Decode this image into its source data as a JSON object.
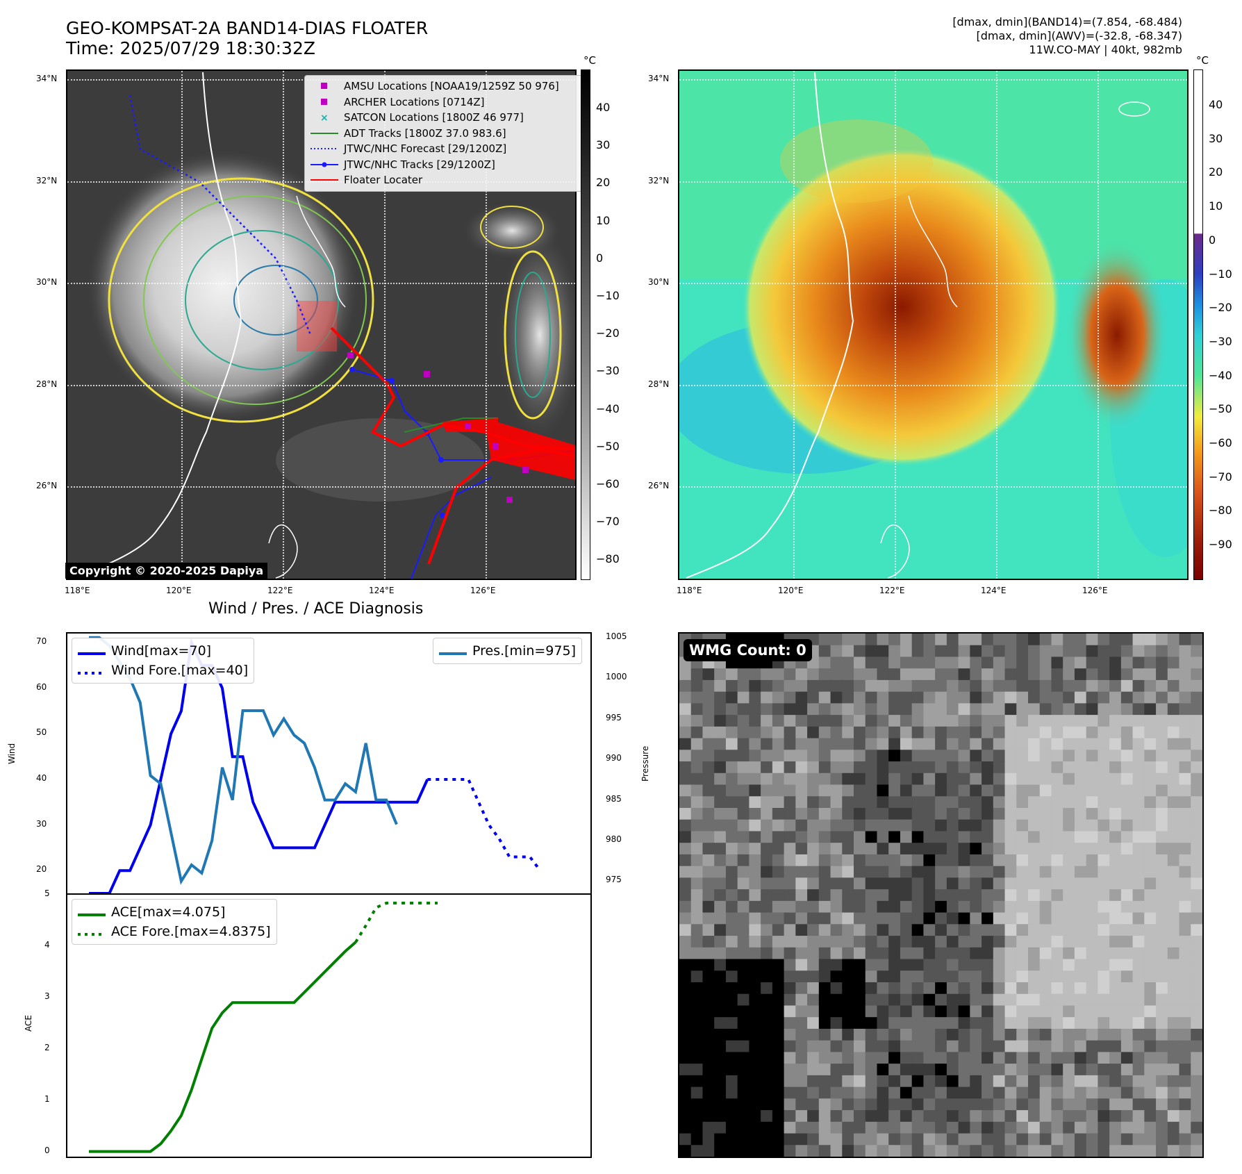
{
  "header": {
    "title_line1": "GEO-KOMPSAT-2A BAND14-DIAS FLOATER",
    "title_line2": "Time: 2025/07/29 18:30:32Z",
    "info_line1": "[dmax, dmin](BAND14)=(7.854, -68.484)",
    "info_line2": "[dmax, dmin](AWV)=(-32.8, -68.347)",
    "info_line3": "11W.CO-MAY | 40kt, 982mb"
  },
  "map": {
    "lat_labels": [
      "34°N",
      "32°N",
      "30°N",
      "28°N",
      "26°N"
    ],
    "lon_labels": [
      "118°E",
      "120°E",
      "122°E",
      "124°E",
      "126°E"
    ],
    "copyright": "Copyright © 2020-2025 Dapiya",
    "legend": [
      {
        "label": "AMSU Locations [NOAA19/1259Z 50 976]",
        "symbol": "square",
        "color": "#c000c0"
      },
      {
        "label": "ARCHER Locations [0714Z]",
        "symbol": "square",
        "color": "#c000c0"
      },
      {
        "label": "SATCON Locations [1800Z 46 977]",
        "symbol": "x",
        "color": "#18b0b0"
      },
      {
        "label": "ADT Tracks [1800Z 37.0 983.6]",
        "symbol": "line",
        "color": "#2a8a2a"
      },
      {
        "label": "JTWC/NHC Forecast [29/1200Z]",
        "symbol": "dotted",
        "color": "#1a1aff"
      },
      {
        "label": "JTWC/NHC Tracks [29/1200Z]",
        "symbol": "line-dot",
        "color": "#1a1aff"
      },
      {
        "label": "Floater Locater",
        "symbol": "line",
        "color": "#ff0000"
      }
    ]
  },
  "colorbar1": {
    "unit": "°C",
    "ticks": [
      "40",
      "30",
      "20",
      "10",
      "0",
      "−10",
      "−20",
      "−30",
      "−40",
      "−50",
      "−60",
      "−70",
      "−80"
    ]
  },
  "colorbar2": {
    "unit": "°C",
    "ticks": [
      "40",
      "30",
      "20",
      "10",
      "0",
      "−10",
      "−20",
      "−30",
      "−40",
      "−50",
      "−60",
      "−70",
      "−80",
      "−90"
    ]
  },
  "diagnosis_title": "Wind / Pres. / ACE Diagnosis",
  "wmg_count": "WMG Count: 0",
  "chart_data": [
    {
      "type": "line",
      "title": "Wind / Pres. / ACE Diagnosis",
      "ylabel": "Wind",
      "ylabel_right": "Pressure",
      "ylim": [
        15,
        72
      ],
      "ylim_right": [
        973.5,
        1005.5
      ],
      "yticks": [
        "70",
        "60",
        "50",
        "40",
        "30",
        "20"
      ],
      "yticks_right": [
        "1005",
        "1000",
        "995",
        "990",
        "985",
        "980",
        "975"
      ],
      "x": [
        0,
        1,
        2,
        3,
        4,
        5,
        6,
        7,
        8,
        9,
        10,
        11,
        12,
        13,
        14,
        15,
        16,
        17,
        18,
        19,
        20,
        21,
        22,
        23,
        24,
        25,
        26,
        27,
        28,
        29,
        30,
        31,
        32,
        33,
        34,
        35,
        36,
        37,
        38,
        39,
        40,
        41,
        42,
        43,
        44,
        45,
        46,
        47
      ],
      "series": [
        {
          "name": "Wind[max=70]",
          "axis": "left",
          "style": "solid",
          "color": "#0000ee",
          "values": [
            15,
            15,
            15,
            20,
            20,
            25,
            30,
            40,
            50,
            55,
            70,
            65,
            65,
            60,
            45,
            45,
            35,
            30,
            25,
            25,
            25,
            25,
            25,
            30,
            35,
            35,
            35,
            35,
            35,
            35,
            35,
            35,
            35,
            40,
            null,
            null,
            null,
            null,
            null,
            null,
            null,
            null,
            null,
            null,
            null,
            null,
            null,
            null
          ]
        },
        {
          "name": "Wind Fore.[max=40]",
          "axis": "left",
          "style": "dotted",
          "color": "#0000ee",
          "values": [
            null,
            null,
            null,
            null,
            null,
            null,
            null,
            null,
            null,
            null,
            null,
            null,
            null,
            null,
            null,
            null,
            null,
            null,
            null,
            null,
            null,
            null,
            null,
            null,
            null,
            null,
            null,
            null,
            null,
            null,
            null,
            null,
            null,
            40,
            40,
            40,
            40,
            40,
            35,
            30,
            27,
            23,
            23,
            23,
            20,
            null,
            null,
            null
          ]
        },
        {
          "name": "Pres.[min=975]",
          "axis": "right",
          "style": "solid",
          "color": "#1f77b4",
          "values": [
            1005,
            1005,
            1004,
            1002,
            1000,
            997,
            988,
            987,
            981,
            975,
            977,
            976,
            980,
            989,
            985,
            996,
            996,
            996,
            993,
            995,
            993,
            992,
            989,
            985,
            985,
            987,
            986,
            992,
            985,
            985,
            982,
            null,
            null,
            null,
            null,
            null,
            null,
            null,
            null,
            null,
            null,
            null,
            null,
            null,
            null,
            null,
            null,
            null
          ]
        }
      ]
    },
    {
      "type": "line",
      "ylabel": "ACE",
      "ylim": [
        -0.1,
        5.0
      ],
      "yticks": [
        "5",
        "4",
        "3",
        "2",
        "1",
        "0"
      ],
      "series": [
        {
          "name": "ACE[max=4.075]",
          "style": "solid",
          "color": "#008000",
          "values": [
            0,
            0,
            0,
            0,
            0,
            0,
            0,
            0.15,
            0.4,
            0.7,
            1.2,
            1.8,
            2.4,
            2.7,
            2.9,
            2.9,
            2.9,
            2.9,
            2.9,
            2.9,
            2.9,
            3.1,
            3.3,
            3.5,
            3.7,
            3.9,
            4.075
          ]
        },
        {
          "name": "ACE Fore.[max=4.8375]",
          "style": "dotted",
          "color": "#008000",
          "values": [
            null,
            null,
            null,
            null,
            null,
            null,
            null,
            null,
            null,
            null,
            null,
            null,
            null,
            null,
            null,
            null,
            null,
            null,
            null,
            null,
            null,
            null,
            null,
            null,
            null,
            null,
            4.075,
            4.4,
            4.75,
            4.8375,
            4.8375,
            4.8375,
            4.8375,
            4.8375,
            4.8375
          ]
        }
      ]
    }
  ],
  "colors": {
    "wind": "#0000ee",
    "pressure": "#1f77b4",
    "ace": "#008000",
    "floater": "#ff0000"
  }
}
